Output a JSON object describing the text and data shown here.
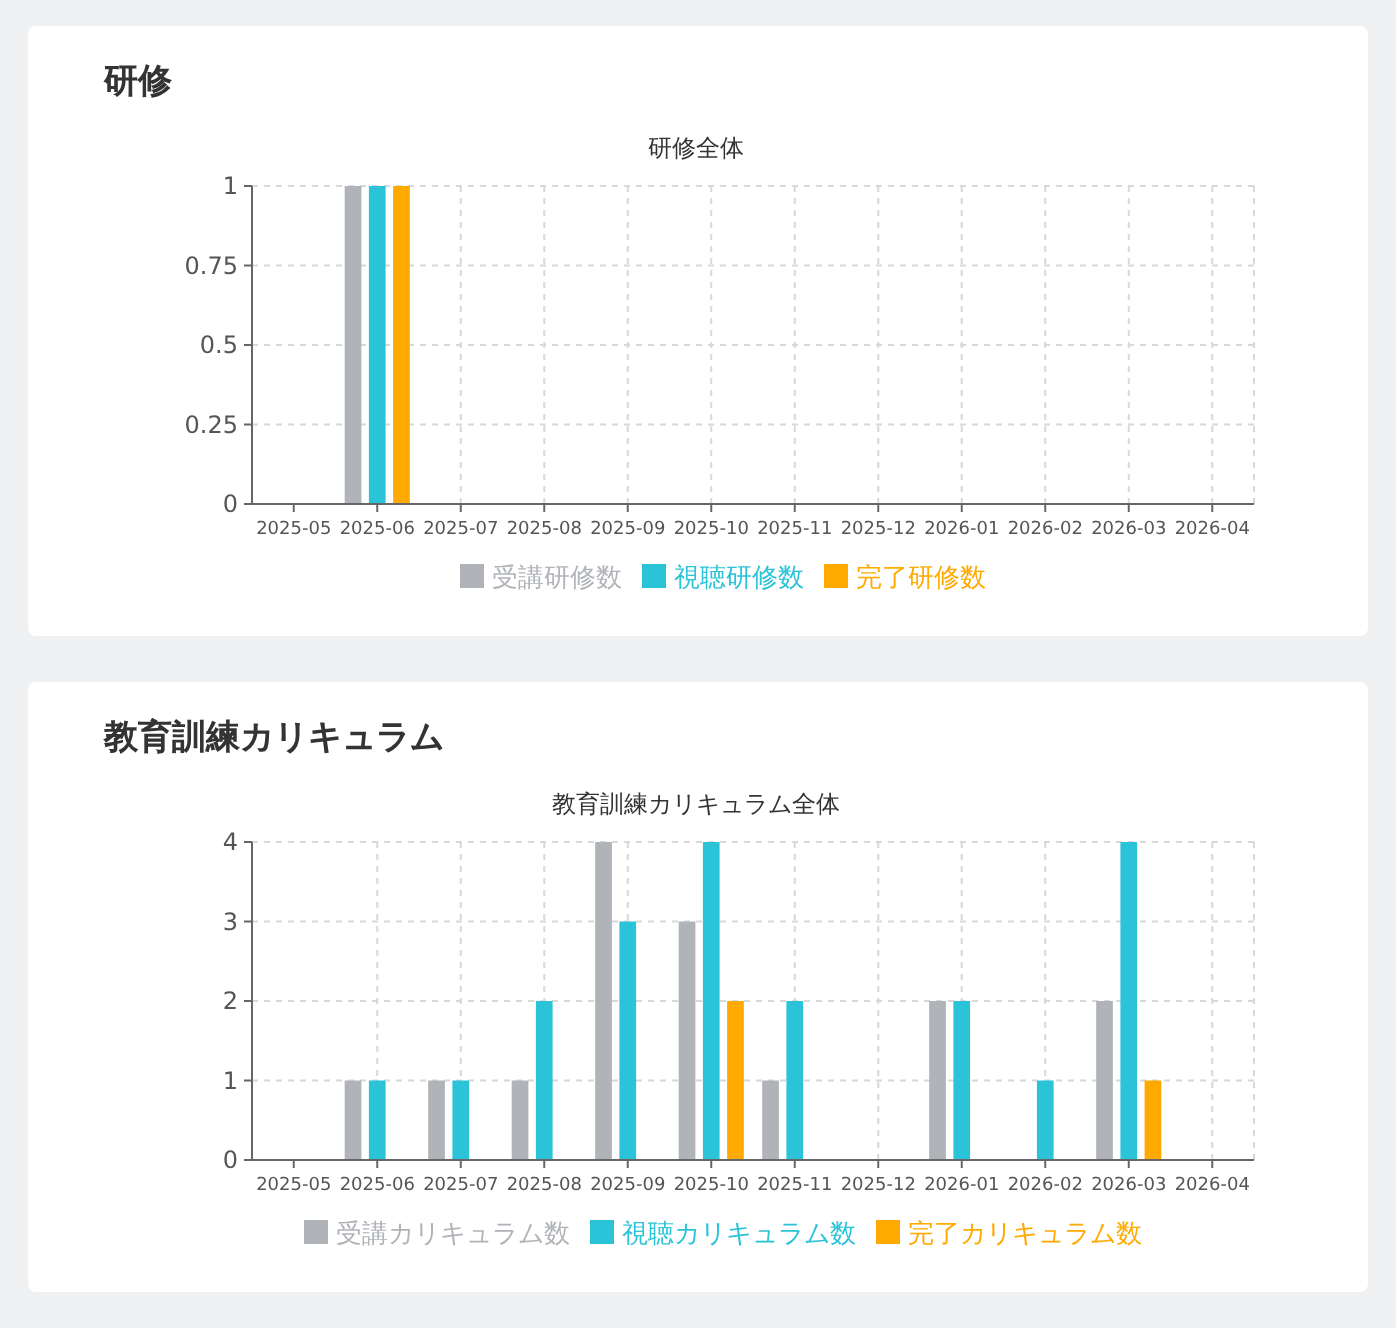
{
  "chart_data": [
    {
      "type": "bar",
      "title": "研修",
      "subtitle": "研修全体",
      "categories": [
        "2025-05",
        "2025-06",
        "2025-07",
        "2025-08",
        "2025-09",
        "2025-10",
        "2025-11",
        "2025-12",
        "2026-01",
        "2026-02",
        "2026-03",
        "2026-04"
      ],
      "ylim": [
        0,
        1
      ],
      "yticks": [
        0,
        0.25,
        0.5,
        0.75,
        1
      ],
      "grid": true,
      "legend": "bottom",
      "series": [
        {
          "name": "受講研修数",
          "color": "#b0b3b8",
          "values": [
            0,
            1,
            0,
            0,
            0,
            0,
            0,
            0,
            0,
            0,
            0,
            0
          ]
        },
        {
          "name": "視聴研修数",
          "color": "#2bc3d8",
          "values": [
            0,
            1,
            0,
            0,
            0,
            0,
            0,
            0,
            0,
            0,
            0,
            0
          ]
        },
        {
          "name": "完了研修数",
          "color": "#ffaa00",
          "values": [
            0,
            1,
            0,
            0,
            0,
            0,
            0,
            0,
            0,
            0,
            0,
            0
          ]
        }
      ]
    },
    {
      "type": "bar",
      "title": "教育訓練カリキュラム",
      "subtitle": "教育訓練カリキュラム全体",
      "categories": [
        "2025-05",
        "2025-06",
        "2025-07",
        "2025-08",
        "2025-09",
        "2025-10",
        "2025-11",
        "2025-12",
        "2026-01",
        "2026-02",
        "2026-03",
        "2026-04"
      ],
      "ylim": [
        0,
        4
      ],
      "yticks": [
        0,
        1,
        2,
        3,
        4
      ],
      "grid": true,
      "legend": "bottom",
      "series": [
        {
          "name": "受講カリキュラム数",
          "color": "#b0b3b8",
          "values": [
            0,
            1,
            1,
            1,
            4,
            3,
            1,
            0,
            2,
            0,
            2,
            0
          ]
        },
        {
          "name": "視聴カリキュラム数",
          "color": "#2bc3d8",
          "values": [
            0,
            1,
            1,
            2,
            3,
            4,
            2,
            0,
            2,
            1,
            4,
            0
          ]
        },
        {
          "name": "完了カリキュラム数",
          "color": "#ffaa00",
          "values": [
            0,
            0,
            0,
            0,
            0,
            2,
            0,
            0,
            0,
            0,
            1,
            0
          ]
        }
      ]
    }
  ]
}
